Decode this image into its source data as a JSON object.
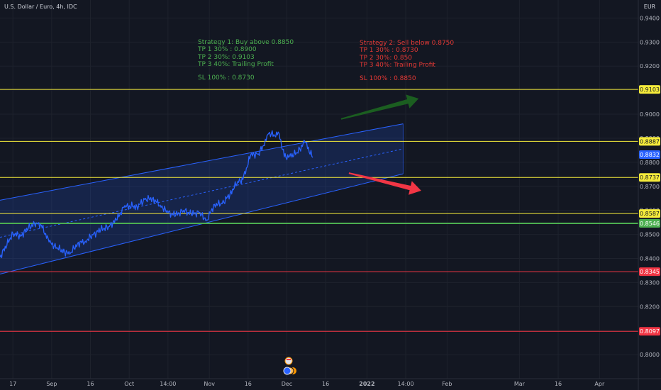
{
  "header": {
    "symbol": "U.S. Dollar / Euro, 4h, IDC",
    "currency": "EUR"
  },
  "notes": {
    "strategy1": {
      "title": "Strategy 1: Buy above 0.8850",
      "tp1": "TP 1 30% : 0.8900",
      "tp2": "TP 2 30%: 0.9103",
      "tp3": "TP 3 40%: Trailing Profit",
      "sl": "SL 100% : 0.8730",
      "color": "#4caf50"
    },
    "strategy2": {
      "title": "Strategy 2: Sell below 0.8750",
      "tp1": "TP 1 30% : 0.8730",
      "tp2": "TP 2 30%: 0.850",
      "tp3": "TP 3 40%: Trailing Profit",
      "sl": "SL 100% : 0.8850",
      "color": "#e53935"
    }
  },
  "chart_data": {
    "type": "line",
    "title": "U.S. Dollar / Euro, 4h, IDC",
    "y_unit": "EUR",
    "y_range": [
      0.79,
      0.9475
    ],
    "y_ticks": [
      "0.8000",
      "0.8100",
      "0.8200",
      "0.8300",
      "0.8400",
      "0.8500",
      "0.8600",
      "0.8700",
      "0.8800",
      "0.8900",
      "0.9000",
      "0.9100",
      "0.9200",
      "0.9300",
      "0.9400"
    ],
    "x_ticks": [
      "17",
      "Sep",
      "16",
      "Oct",
      "14:00",
      "Nov",
      "16",
      "Dec",
      "16",
      "2022",
      "14:00",
      "Feb",
      "Mar",
      "16",
      "Apr"
    ],
    "x_range": [
      "2021-08-12",
      "2022-04-16"
    ],
    "x_tick_dates": [
      "2021-08-17",
      "2021-09-01",
      "2021-09-16",
      "2021-10-01",
      "2021-10-16",
      "2021-11-01",
      "2021-11-16",
      "2021-12-01",
      "2021-12-16",
      "2022-01-01",
      "2022-01-16",
      "2022-02-01",
      "2022-03-01",
      "2022-03-16",
      "2022-04-01"
    ],
    "price_series": {
      "name": "USD/EUR",
      "color": "#2962ff",
      "points": [
        [
          "2021-08-12",
          0.8405
        ],
        [
          "2021-08-17",
          0.8505
        ],
        [
          "2021-08-20",
          0.8492
        ],
        [
          "2021-08-23",
          0.8528
        ],
        [
          "2021-08-26",
          0.8548
        ],
        [
          "2021-08-28",
          0.8538
        ],
        [
          "2021-08-31",
          0.8468
        ],
        [
          "2021-09-03",
          0.8445
        ],
        [
          "2021-09-06",
          0.8428
        ],
        [
          "2021-09-08",
          0.8418
        ],
        [
          "2021-09-11",
          0.8462
        ],
        [
          "2021-09-14",
          0.8472
        ],
        [
          "2021-09-17",
          0.8498
        ],
        [
          "2021-09-20",
          0.852
        ],
        [
          "2021-09-23",
          0.8532
        ],
        [
          "2021-09-26",
          0.856
        ],
        [
          "2021-09-29",
          0.8612
        ],
        [
          "2021-10-01",
          0.862
        ],
        [
          "2021-10-04",
          0.8615
        ],
        [
          "2021-10-07",
          0.8645
        ],
        [
          "2021-10-10",
          0.865
        ],
        [
          "2021-10-13",
          0.8622
        ],
        [
          "2021-10-16",
          0.859
        ],
        [
          "2021-10-19",
          0.858
        ],
        [
          "2021-10-22",
          0.86
        ],
        [
          "2021-10-25",
          0.8585
        ],
        [
          "2021-10-28",
          0.859
        ],
        [
          "2021-10-31",
          0.856
        ],
        [
          "2021-11-03",
          0.8625
        ],
        [
          "2021-11-06",
          0.8628
        ],
        [
          "2021-11-09",
          0.8668
        ],
        [
          "2021-11-12",
          0.872
        ],
        [
          "2021-11-14",
          0.8728
        ],
        [
          "2021-11-17",
          0.883
        ],
        [
          "2021-11-20",
          0.8835
        ],
        [
          "2021-11-22",
          0.887
        ],
        [
          "2021-11-24",
          0.892
        ],
        [
          "2021-11-26",
          0.8915
        ],
        [
          "2021-11-28",
          0.892
        ],
        [
          "2021-11-30",
          0.8822
        ],
        [
          "2021-12-02",
          0.8825
        ],
        [
          "2021-12-05",
          0.884
        ],
        [
          "2021-12-08",
          0.8885
        ],
        [
          "2021-12-11",
          0.882
        ]
      ]
    },
    "channel": {
      "upper": [
        [
          "2021-08-12",
          0.8642
        ],
        [
          "2022-01-15",
          0.896
        ]
      ],
      "lower": [
        [
          "2021-08-12",
          0.8335
        ],
        [
          "2022-01-15",
          0.8752
        ]
      ],
      "midline": [
        [
          "2021-08-12",
          0.8488
        ],
        [
          "2022-01-15",
          0.8856
        ]
      ],
      "color": "#2962ff"
    },
    "levels": [
      {
        "value": 0.9103,
        "label": "0.9103",
        "color": "#f5eb3b"
      },
      {
        "value": 0.8887,
        "label": "0.8887",
        "color": "#f5eb3b"
      },
      {
        "value": 0.8737,
        "label": "0.8737",
        "color": "#f5eb3b"
      },
      {
        "value": 0.8587,
        "label": "0.8587",
        "color": "#f5eb3b"
      },
      {
        "value": 0.8546,
        "label": "0.8546",
        "color": "#4caf50"
      },
      {
        "value": 0.8345,
        "label": "0.8345",
        "color": "#f23645"
      },
      {
        "value": 0.8097,
        "label": "0.8097",
        "color": "#f23645"
      }
    ],
    "last_price": {
      "value": 0.8832,
      "label": "0.8832",
      "color": "#2962ff"
    },
    "arrows": [
      {
        "direction": "up",
        "from": [
          "2021-12-22",
          0.898
        ],
        "to": [
          "2022-01-21",
          0.9065
        ],
        "color": "#1b5e20"
      },
      {
        "direction": "down",
        "from": [
          "2021-12-25",
          0.8755
        ],
        "to": [
          "2022-01-22",
          0.8682
        ],
        "color": "#f23645"
      }
    ],
    "grid": true
  }
}
